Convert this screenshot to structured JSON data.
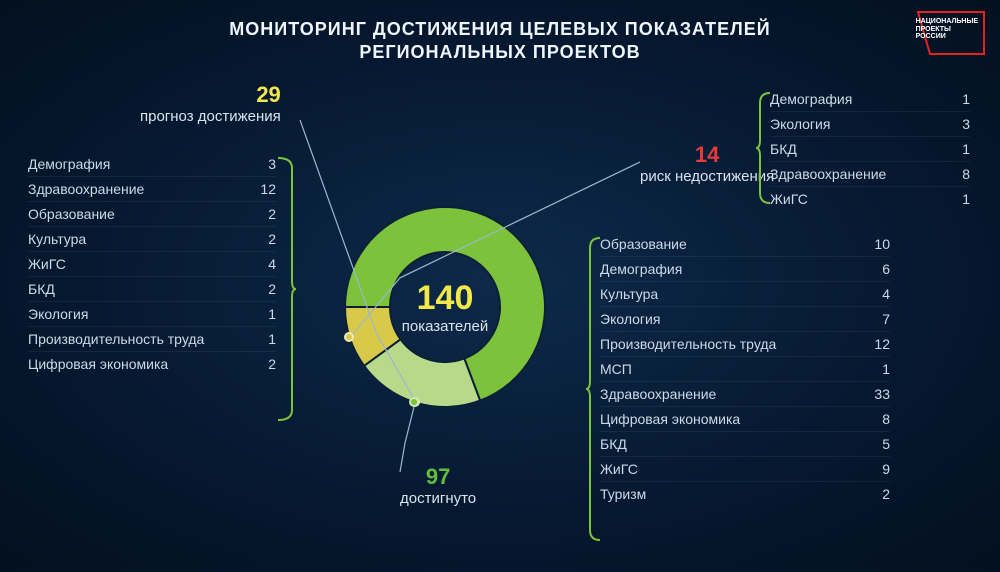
{
  "title_line1": "МОНИТОРИНГ ДОСТИЖЕНИЯ ЦЕЛЕВЫХ ПОКАЗАТЕЛЕЙ",
  "title_line2": "РЕГИОНАЛЬНЫХ ПРОЕКТОВ",
  "logo": {
    "line1": "НАЦИОНАЛЬНЫЕ",
    "line2": "ПРОЕКТЫ",
    "line3": "РОССИИ",
    "stroke": "#e02424"
  },
  "chart": {
    "type": "donut",
    "center_value": "140",
    "center_label": "показателей",
    "center_value_color": "#f2e84a",
    "inner_radius_pct": 55,
    "segments": [
      {
        "key": "achieved",
        "value": 97,
        "color": "#7cc23b"
      },
      {
        "key": "forecast",
        "value": 29,
        "color": "#b9d98a"
      },
      {
        "key": "risk",
        "value": 14,
        "color": "#d8c94b"
      }
    ],
    "background": "transparent"
  },
  "callouts": {
    "forecast": {
      "value": "29",
      "label": "прогноз достижения",
      "value_color": "#f2e84a",
      "dot_color": "#b9d98a"
    },
    "risk": {
      "value": "14",
      "label": "риск недостижения",
      "value_color": "#e63b3b",
      "dot_color": "#d8c94b"
    },
    "achieved": {
      "value": "97",
      "label": "достигнуто",
      "value_color": "#5fbf3a",
      "dot_color": "#7cc23b"
    }
  },
  "lists": {
    "forecast": {
      "bracket_color": "#7cc23b",
      "items": [
        {
          "name": "Демография",
          "value": "3"
        },
        {
          "name": "Здравоохранение",
          "value": "12"
        },
        {
          "name": "Образование",
          "value": "2"
        },
        {
          "name": "Культура",
          "value": "2"
        },
        {
          "name": "ЖиГС",
          "value": "4"
        },
        {
          "name": "БКД",
          "value": "2"
        },
        {
          "name": "Экология",
          "value": "1"
        },
        {
          "name": "Производительность труда",
          "value": "1"
        },
        {
          "name": "Цифровая экономика",
          "value": "2"
        }
      ]
    },
    "risk": {
      "bracket_color": "#7cc23b",
      "items": [
        {
          "name": "Демография",
          "value": "1"
        },
        {
          "name": "Экология",
          "value": "3"
        },
        {
          "name": "БКД",
          "value": "1"
        },
        {
          "name": "Здравоохранение",
          "value": "8"
        },
        {
          "name": "ЖиГС",
          "value": "1"
        }
      ]
    },
    "achieved": {
      "bracket_color": "#7cc23b",
      "items": [
        {
          "name": "Образование",
          "value": "10"
        },
        {
          "name": "Демография",
          "value": "6"
        },
        {
          "name": "Культура",
          "value": "4"
        },
        {
          "name": "Экология",
          "value": "7"
        },
        {
          "name": "Производительность труда",
          "value": "12"
        },
        {
          "name": "МСП",
          "value": "1"
        },
        {
          "name": "Здравоохранение",
          "value": "33"
        },
        {
          "name": "Цифровая экономика",
          "value": "8"
        },
        {
          "name": "БКД",
          "value": "5"
        },
        {
          "name": "ЖиГС",
          "value": "9"
        },
        {
          "name": "Туризм",
          "value": "2"
        }
      ]
    }
  }
}
